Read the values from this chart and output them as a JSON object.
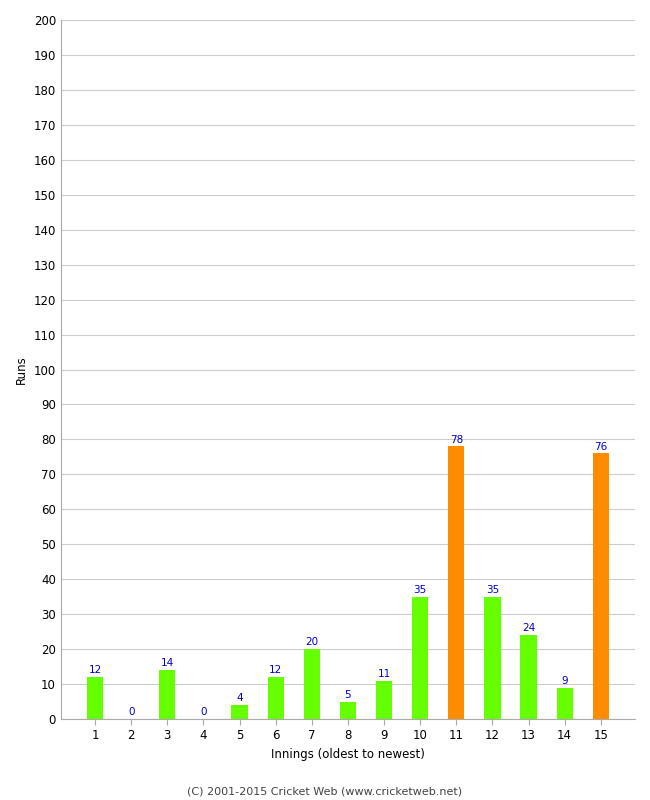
{
  "xlabel": "Innings (oldest to newest)",
  "ylabel": "Runs",
  "categories": [
    1,
    2,
    3,
    4,
    5,
    6,
    7,
    8,
    9,
    10,
    11,
    12,
    13,
    14,
    15
  ],
  "values": [
    12,
    0,
    14,
    0,
    4,
    12,
    20,
    5,
    11,
    35,
    78,
    35,
    24,
    9,
    76
  ],
  "bar_colors": [
    "#66ff00",
    "#66ff00",
    "#66ff00",
    "#66ff00",
    "#66ff00",
    "#66ff00",
    "#66ff00",
    "#66ff00",
    "#66ff00",
    "#66ff00",
    "#ff8c00",
    "#66ff00",
    "#66ff00",
    "#66ff00",
    "#ff8c00"
  ],
  "label_color": "#0000cc",
  "ylim": [
    0,
    200
  ],
  "yticks": [
    0,
    10,
    20,
    30,
    40,
    50,
    60,
    70,
    80,
    90,
    100,
    110,
    120,
    130,
    140,
    150,
    160,
    170,
    180,
    190,
    200
  ],
  "background_color": "#ffffff",
  "grid_color": "#cccccc",
  "footer": "(C) 2001-2015 Cricket Web (www.cricketweb.net)",
  "bar_width": 0.45,
  "label_fontsize": 7.5,
  "axis_fontsize": 8.5,
  "ylabel_fontsize": 8.5,
  "xlabel_fontsize": 8.5,
  "footer_fontsize": 8
}
